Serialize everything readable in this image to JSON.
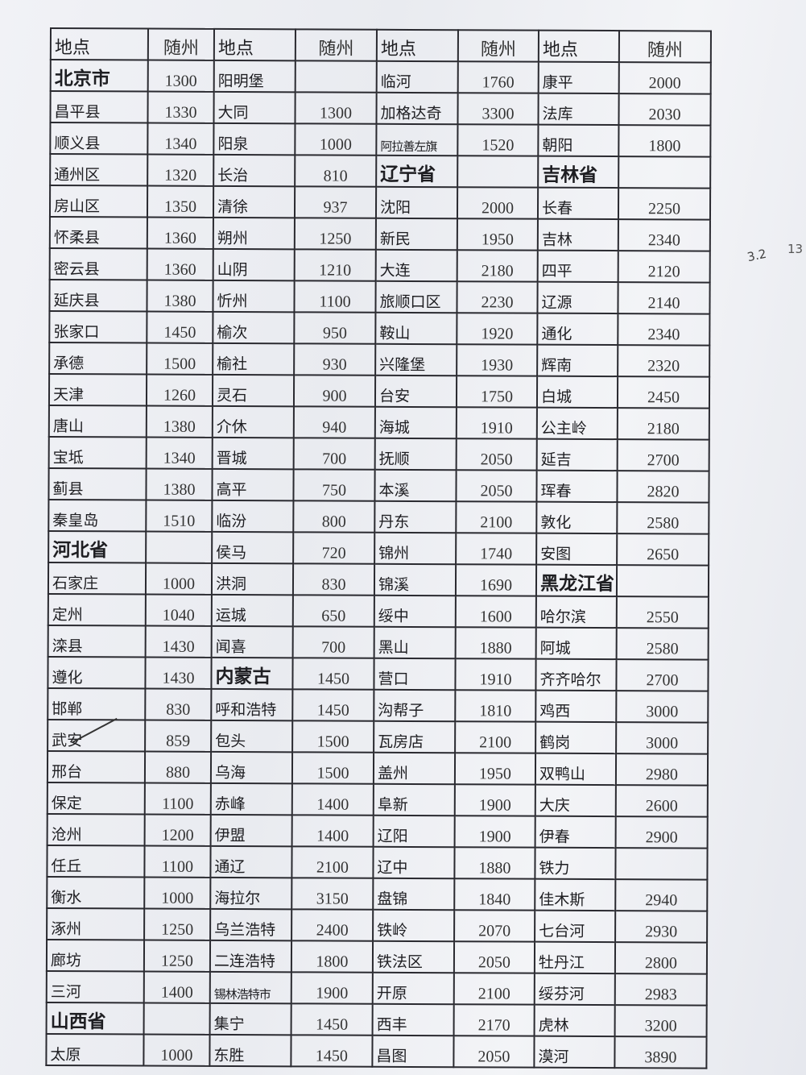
{
  "table": {
    "headers": [
      "地点",
      "随州",
      "地点",
      "随州",
      "地点",
      "随州",
      "地点",
      "随州"
    ],
    "section_headers": [
      "北京市",
      "河北省",
      "山西省",
      "辽宁省",
      "吉林省",
      "内蒙古",
      "黑龙江省"
    ],
    "rows": [
      [
        "北京市",
        "1300",
        "阳明堡",
        "",
        "临河",
        "1760",
        "康平",
        "2000"
      ],
      [
        "昌平县",
        "1330",
        "大同",
        "1300",
        "加格达奇",
        "3300",
        "法库",
        "2030"
      ],
      [
        "顺义县",
        "1340",
        "阳泉",
        "1000",
        "阿拉善左旗",
        "1520",
        "朝阳",
        "1800"
      ],
      [
        "通州区",
        "1320",
        "长治",
        "810",
        "辽宁省",
        "",
        "吉林省",
        ""
      ],
      [
        "房山区",
        "1350",
        "清徐",
        "937",
        "沈阳",
        "2000",
        "长春",
        "2250"
      ],
      [
        "怀柔县",
        "1360",
        "朔州",
        "1250",
        "新民",
        "1950",
        "吉林",
        "2340"
      ],
      [
        "密云县",
        "1360",
        "山阴",
        "1210",
        "大连",
        "2180",
        "四平",
        "2120"
      ],
      [
        "延庆县",
        "1380",
        "忻州",
        "1100",
        "旅顺口区",
        "2230",
        "辽源",
        "2140"
      ],
      [
        "张家口",
        "1450",
        "榆次",
        "950",
        "鞍山",
        "1920",
        "通化",
        "2340"
      ],
      [
        "承德",
        "1500",
        "榆社",
        "930",
        "兴隆堡",
        "1930",
        "辉南",
        "2320"
      ],
      [
        "天津",
        "1260",
        "灵石",
        "900",
        "台安",
        "1750",
        "白城",
        "2450"
      ],
      [
        "唐山",
        "1380",
        "介休",
        "940",
        "海城",
        "1910",
        "公主岭",
        "2180"
      ],
      [
        "宝坻",
        "1340",
        "晋城",
        "700",
        "抚顺",
        "2050",
        "延吉",
        "2700"
      ],
      [
        "蓟县",
        "1380",
        "高平",
        "750",
        "本溪",
        "2050",
        "珲春",
        "2820"
      ],
      [
        "秦皇岛",
        "1510",
        "临汾",
        "800",
        "丹东",
        "2100",
        "敦化",
        "2580"
      ],
      [
        "河北省",
        "",
        "侯马",
        "720",
        "锦州",
        "1740",
        "安图",
        "2650"
      ],
      [
        "石家庄",
        "1000",
        "洪洞",
        "830",
        "锦溪",
        "1690",
        "黑龙江省",
        ""
      ],
      [
        "定州",
        "1040",
        "运城",
        "650",
        "绥中",
        "1600",
        "哈尔滨",
        "2550"
      ],
      [
        "滦县",
        "1430",
        "闻喜",
        "700",
        "黑山",
        "1880",
        "阿城",
        "2580"
      ],
      [
        "遵化",
        "1430",
        "内蒙古",
        "1450",
        "营口",
        "1910",
        "齐齐哈尔",
        "2700"
      ],
      [
        "邯郸",
        "830",
        "呼和浩特",
        "1450",
        "沟帮子",
        "1810",
        "鸡西",
        "3000"
      ],
      [
        "武安",
        "859",
        "包头",
        "1500",
        "瓦房店",
        "2100",
        "鹤岗",
        "3000"
      ],
      [
        "邢台",
        "880",
        "乌海",
        "1500",
        "盖州",
        "1950",
        "双鸭山",
        "2980"
      ],
      [
        "保定",
        "1100",
        "赤峰",
        "1400",
        "阜新",
        "1900",
        "大庆",
        "2600"
      ],
      [
        "沧州",
        "1200",
        "伊盟",
        "1400",
        "辽阳",
        "1900",
        "伊春",
        "2900"
      ],
      [
        "任丘",
        "1100",
        "通辽",
        "2100",
        "辽中",
        "1880",
        "铁力",
        ""
      ],
      [
        "衡水",
        "1000",
        "海拉尔",
        "3150",
        "盘锦",
        "1840",
        "佳木斯",
        "2940"
      ],
      [
        "涿州",
        "1250",
        "乌兰浩特",
        "2400",
        "铁岭",
        "2070",
        "七台河",
        "2930"
      ],
      [
        "廊坊",
        "1250",
        "二连浩特",
        "1800",
        "铁法区",
        "2050",
        "牡丹江",
        "2800"
      ],
      [
        "三河",
        "1400",
        "锡林浩特市",
        "1900",
        "开原",
        "2100",
        "绥芬河",
        "2983"
      ],
      [
        "山西省",
        "",
        "集宁",
        "1450",
        "西丰",
        "2170",
        "虎林",
        "3200"
      ],
      [
        "太原",
        "1000",
        "东胜",
        "1450",
        "昌图",
        "2050",
        "漠河",
        "3890"
      ]
    ]
  },
  "margin_note": {
    "text1": "3.2",
    "text2": "13"
  }
}
